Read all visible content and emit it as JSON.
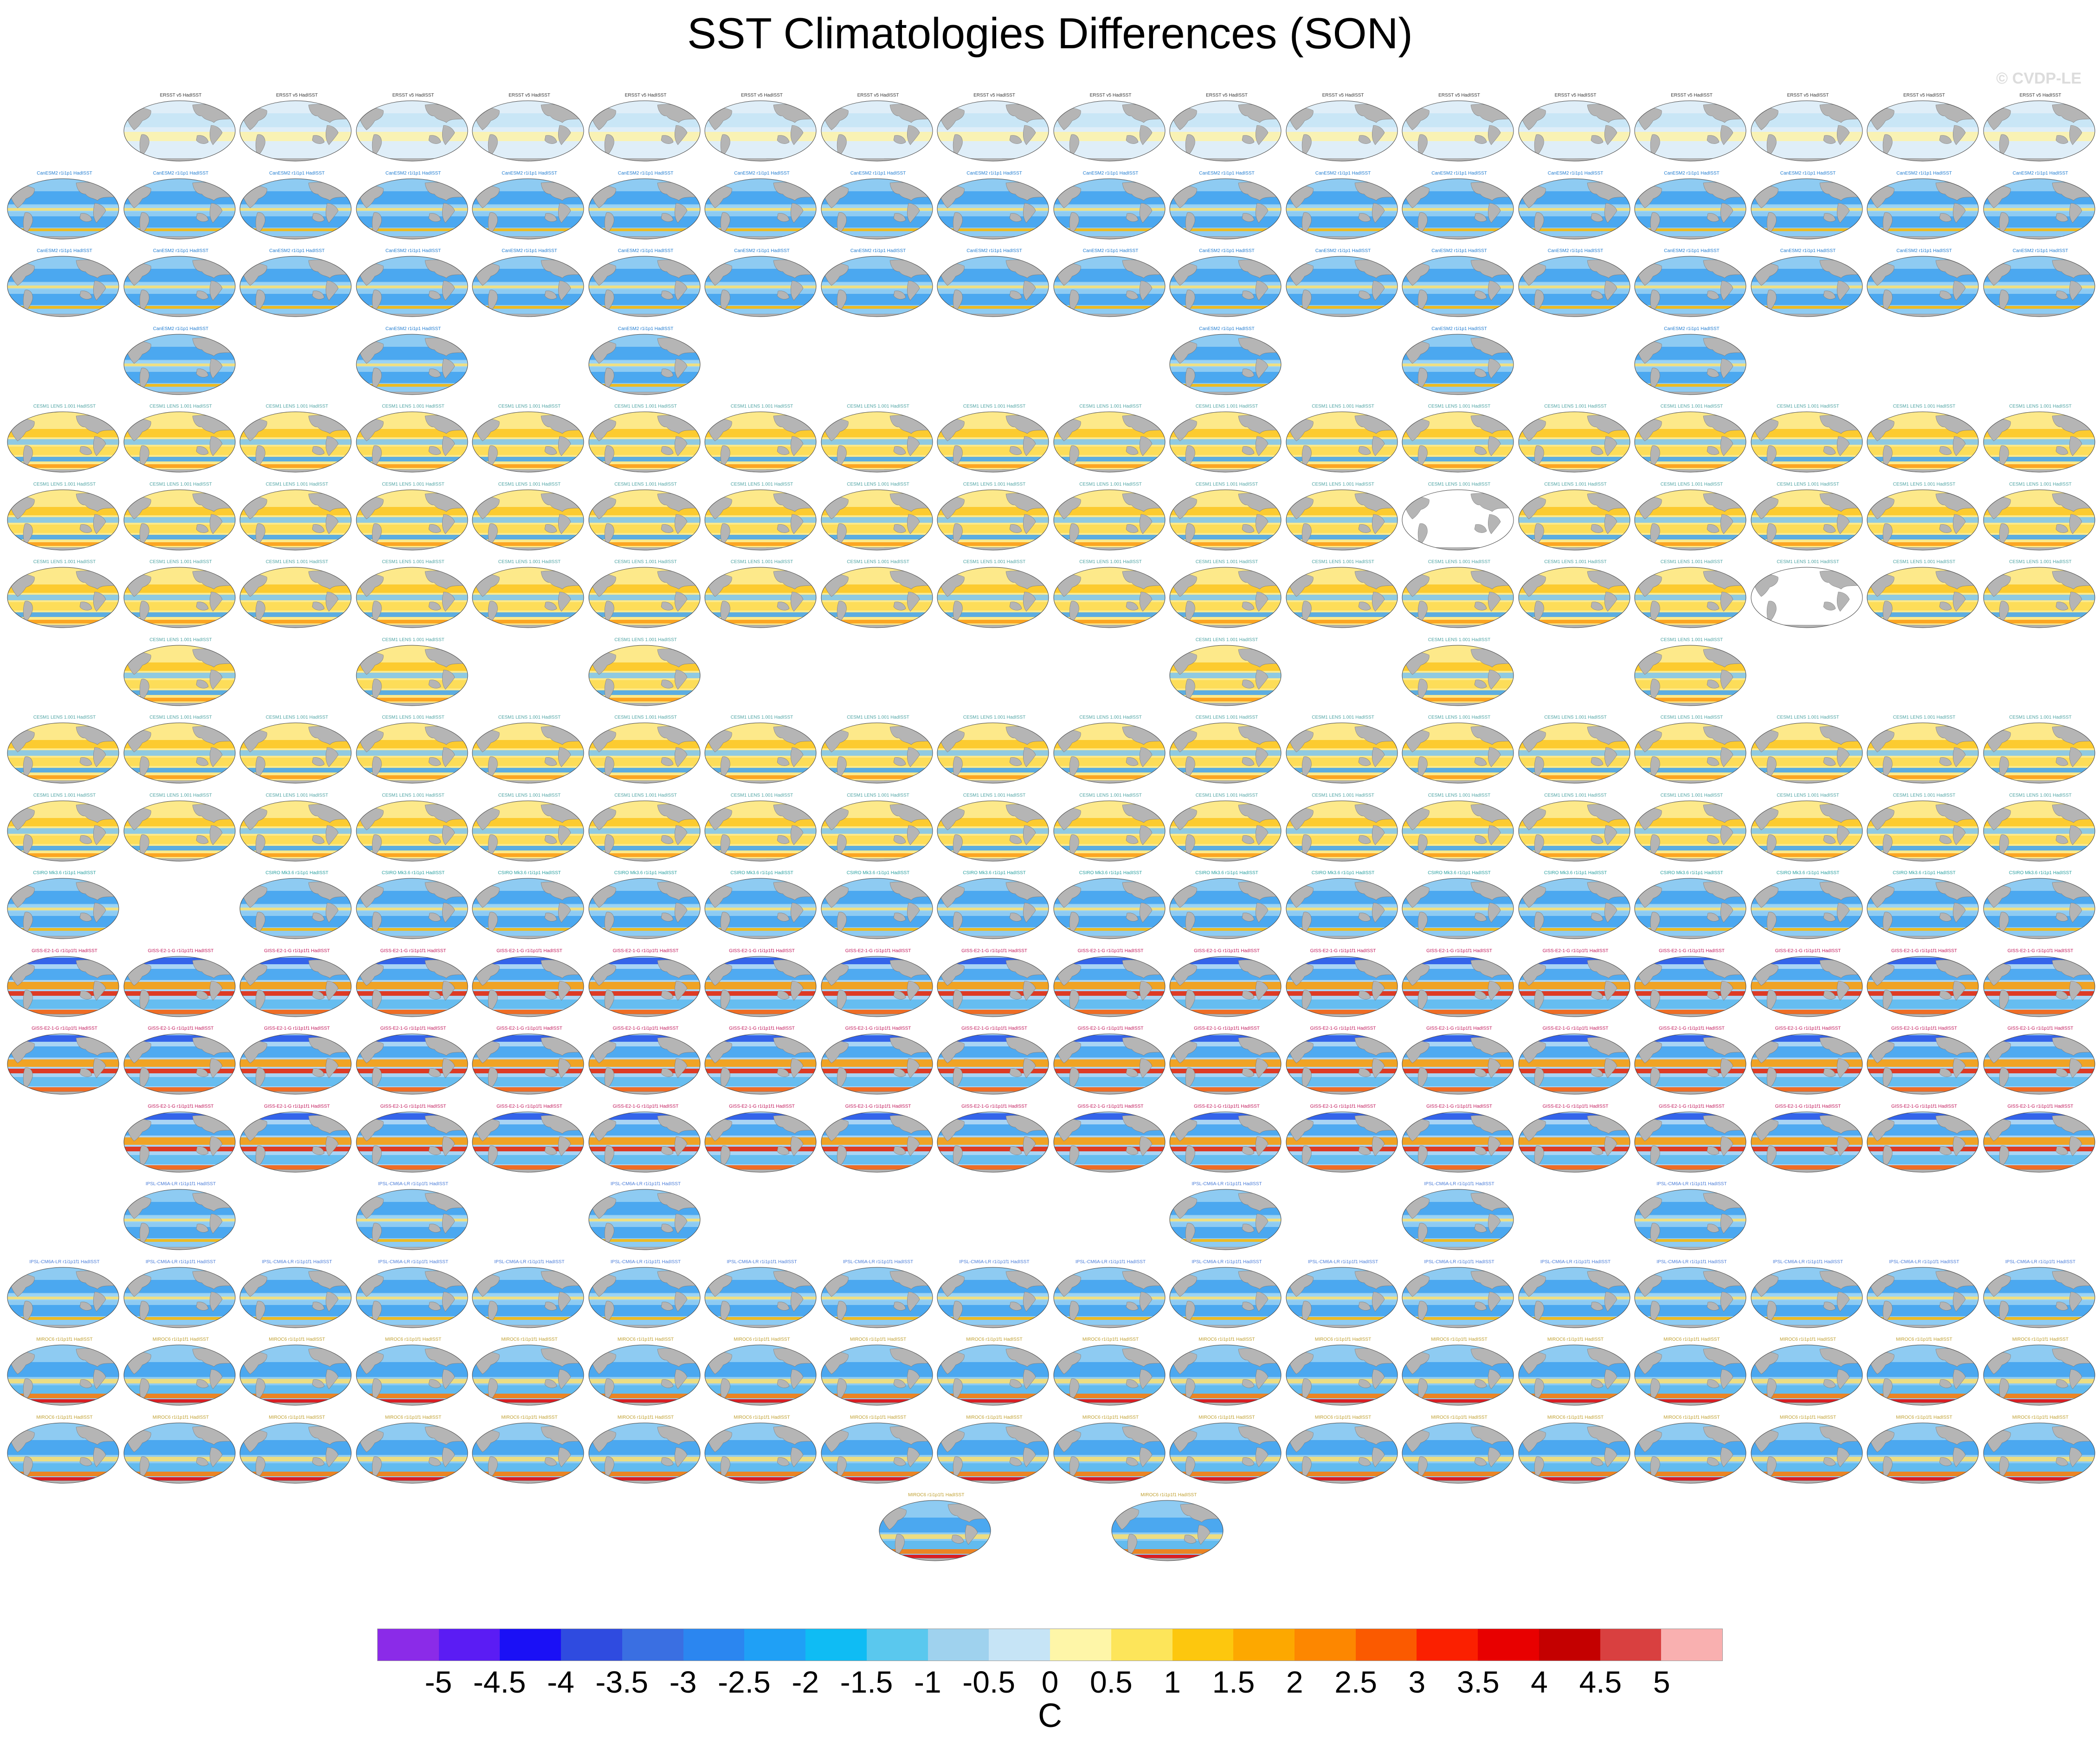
{
  "title": "SST Climatologies Differences (SON)",
  "watermark": "© CVDP-LE",
  "chart_data": {
    "type": "heatmap",
    "title": "SST Climatologies Differences (SON)",
    "description_kind": "panel grid of global SST difference maps",
    "grid_columns": 18,
    "panel_rows": [
      {
        "group": "ERSST/CanESM2",
        "columns": [
          1,
          2,
          3,
          4,
          5,
          6,
          7,
          8,
          9,
          10,
          11,
          12,
          13,
          14,
          15,
          16,
          17
        ]
      },
      {
        "group": "CanESM2",
        "columns": [
          0,
          1,
          2,
          3,
          4,
          5,
          6,
          7,
          8,
          9,
          10,
          11,
          12,
          13,
          14,
          15,
          16,
          17
        ]
      },
      {
        "group": "CanESM2",
        "columns": [
          0,
          1,
          2,
          3,
          4,
          5,
          6,
          7,
          8,
          9,
          10,
          11,
          12,
          13,
          14,
          15,
          16,
          17
        ]
      },
      {
        "group": "CanESM2/CESM1",
        "columns": [
          1,
          3,
          5,
          10,
          12,
          14
        ]
      },
      {
        "group": "CESM1 LENS",
        "columns": [
          0,
          1,
          2,
          3,
          4,
          5,
          6,
          7,
          8,
          9,
          10,
          11,
          12,
          13,
          14,
          15,
          16,
          17
        ]
      },
      {
        "group": "CESM1 LENS",
        "columns": [
          0,
          1,
          2,
          3,
          4,
          5,
          6,
          7,
          8,
          9,
          10,
          11,
          12,
          13,
          14,
          15,
          16,
          17
        ],
        "blank": [
          12
        ]
      },
      {
        "group": "CESM1 LENS",
        "columns": [
          0,
          1,
          2,
          3,
          4,
          5,
          6,
          7,
          8,
          9,
          10,
          11,
          12,
          13,
          14,
          15,
          16,
          17
        ],
        "blank": [
          15
        ]
      },
      {
        "group": "CESM1 LENS",
        "columns": [
          1,
          3,
          5,
          10,
          12,
          14
        ]
      },
      {
        "group": "CESM1 LENS",
        "columns": [
          0,
          1,
          2,
          3,
          4,
          5,
          6,
          7,
          8,
          9,
          10,
          11,
          12,
          13,
          14,
          15,
          16,
          17
        ]
      },
      {
        "group": "CESM1/CSIRO",
        "columns": [
          0,
          1,
          2,
          3,
          4,
          5,
          6,
          7,
          8,
          9,
          10,
          11,
          12,
          13,
          14,
          15,
          16,
          17
        ]
      },
      {
        "group": "CSIRO/GFDL",
        "columns": [
          0,
          2,
          3,
          4,
          5,
          6,
          7,
          8,
          9,
          10,
          11,
          12,
          13,
          14,
          15,
          16,
          17
        ]
      },
      {
        "group": "GISS",
        "columns": [
          0,
          1,
          2,
          3,
          4,
          5,
          6,
          7,
          8,
          9,
          10,
          11,
          12,
          13,
          14,
          15,
          16,
          17
        ]
      },
      {
        "group": "GISS",
        "columns": [
          0,
          1,
          2,
          3,
          4,
          5,
          6,
          7,
          8,
          9,
          10,
          11,
          12,
          13,
          14,
          15,
          16,
          17
        ]
      },
      {
        "group": "GISS/IPSL",
        "columns": [
          1,
          2,
          3,
          4,
          5,
          6,
          7,
          8,
          9,
          10,
          11,
          12,
          13,
          14,
          15,
          16,
          17
        ]
      },
      {
        "group": "IPSL",
        "columns": [
          1,
          3,
          5,
          10,
          12,
          14
        ]
      },
      {
        "group": "IPSL/MIROC",
        "columns": [
          0,
          1,
          2,
          3,
          4,
          5,
          6,
          7,
          8,
          9,
          10,
          11,
          12,
          13,
          14,
          15,
          16,
          17
        ]
      },
      {
        "group": "MIROC",
        "columns": [
          0,
          1,
          2,
          3,
          4,
          5,
          6,
          7,
          8,
          9,
          10,
          11,
          12,
          13,
          14,
          15,
          16,
          17
        ]
      },
      {
        "group": "MIROC",
        "columns": [
          0,
          1,
          2,
          3,
          4,
          5,
          6,
          7,
          8,
          9,
          10,
          11,
          12,
          13,
          14,
          15,
          16,
          17
        ]
      },
      {
        "group": "MIROC",
        "columns": [
          7.5,
          9.5
        ]
      }
    ],
    "colorbar": {
      "units": "C",
      "range": [
        -5,
        5
      ],
      "labels": [
        "-5",
        "-4.5",
        "-4",
        "-3.5",
        "-3",
        "-2.5",
        "-2",
        "-1.5",
        "-1",
        "-0.5",
        "0",
        "0.5",
        "1",
        "1.5",
        "2",
        "2.5",
        "3",
        "3.5",
        "4",
        "4.5",
        "5"
      ],
      "colors": [
        "#8b2be8",
        "#5b1cf4",
        "#1a10f6",
        "#2f4be0",
        "#3a6fe2",
        "#2b86f0",
        "#1fa0f6",
        "#0fbcf4",
        "#5ac8ee",
        "#9fd2ee",
        "#c6e4f6",
        "#fef6a8",
        "#fde55a",
        "#fdc70e",
        "#fda800",
        "#fd8700",
        "#fb5a00",
        "#fb2000",
        "#e80000",
        "#c40000",
        "#d94040",
        "#f9b0b0"
      ]
    },
    "panel_titles": {
      "ERSST": "ERSST v5 HadISST",
      "CanESM2": "CanESM2 r1i1p1 HadISST",
      "CESM1": "CESM1 LENS 1.001 HadISST",
      "CSIRO": "CSIRO Mk3.6 r1i1p1 HadISST",
      "GFDL": "GFDL-ESM2M r1i1p1 HadISST",
      "GISS": "GISS-E2-1-G r1i1p1f1 HadISST",
      "IPSL": "IPSL-CM6A-LR r1i1p1f1 HadISST",
      "MIROC": "MIROC6 r1i1p1f1 HadISST"
    },
    "group_colors": {
      "ERSST": "#333333",
      "CanESM2": "#1f7bd0",
      "CESM1": "#4fa4a4",
      "CSIRO": "#2aa0a0",
      "GFDL": "#8a2ad0",
      "GISS": "#c2185b",
      "IPSL": "#4a7cd8",
      "MIROC": "#c0a030"
    }
  }
}
